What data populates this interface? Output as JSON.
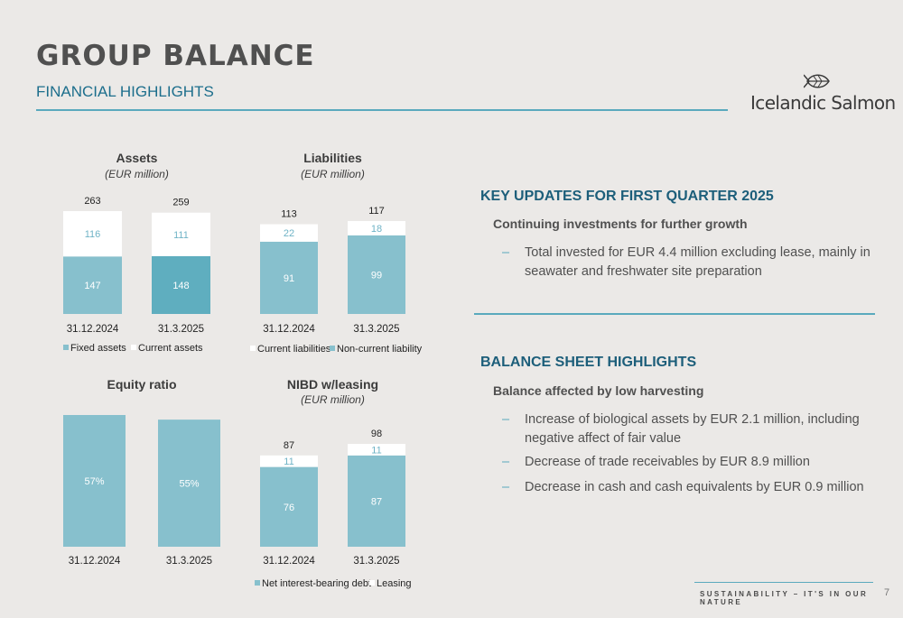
{
  "header": {
    "title": "GROUP BALANCE",
    "subtitle": "FINANCIAL HIGHLIGHTS",
    "brand": "Icelandic Salmon"
  },
  "colors": {
    "dark_teal": "#5faebf",
    "light_teal": "#87c0cd",
    "white_segment": "#ffffff",
    "heading_blue": "#1c5e7a",
    "rule": "#5aa9bd"
  },
  "chart_data": [
    {
      "id": "assets",
      "type": "bar",
      "stacked": true,
      "title": "Assets",
      "subtitle": "(EUR million)",
      "categories": [
        "31.12.2024",
        "31.3.2025"
      ],
      "series": [
        {
          "name": "Fixed assets",
          "values": [
            147,
            148
          ],
          "colors": [
            "#87c0cd",
            "#5faebf"
          ],
          "label_color": "#ffffff"
        },
        {
          "name": "Current assets",
          "values": [
            116,
            111
          ],
          "color": "#ffffff",
          "label_color": "#6fb3c6"
        }
      ],
      "totals": [
        263,
        259
      ],
      "ylim": [
        0,
        263
      ]
    },
    {
      "id": "liabilities",
      "type": "bar",
      "stacked": true,
      "title": "Liabilities",
      "subtitle": "(EUR million)",
      "categories": [
        "31.12.2024",
        "31.3.2025"
      ],
      "series": [
        {
          "name": "Non-current liability",
          "values": [
            91,
            99
          ],
          "color": "#87c0cd",
          "label_color": "#ffffff"
        },
        {
          "name": "Current liabilities",
          "values": [
            22,
            18
          ],
          "color": "#ffffff",
          "label_color": "#6fb3c6"
        }
      ],
      "legend_order": [
        "Current liabilities",
        "Non-current liability"
      ],
      "totals": [
        113,
        117
      ],
      "ylim": [
        0,
        117
      ]
    },
    {
      "id": "equity",
      "type": "bar",
      "stacked": false,
      "title": "Equity ratio",
      "subtitle": "",
      "categories": [
        "31.12.2024",
        "31.3.2025"
      ],
      "series": [
        {
          "name": "",
          "values": [
            57,
            55
          ],
          "labels": [
            "57%",
            "55%"
          ],
          "color": "#87c0cd",
          "label_color": "#ffffff"
        }
      ],
      "ylim": [
        0,
        57
      ]
    },
    {
      "id": "nibd",
      "type": "bar",
      "stacked": true,
      "title": "NIBD w/leasing",
      "subtitle": "(EUR million)",
      "categories": [
        "31.12.2024",
        "31.3.2025"
      ],
      "series": [
        {
          "name": "Net interest-bearing debt",
          "values": [
            76,
            87
          ],
          "color": "#87c0cd",
          "label_color": "#ffffff"
        },
        {
          "name": "Leasing",
          "values": [
            11,
            11
          ],
          "color": "#ffffff",
          "label_color": "#6fb3c6"
        }
      ],
      "totals": [
        87,
        98
      ],
      "ylim": [
        0,
        98
      ]
    }
  ],
  "key_updates": {
    "heading": "KEY UPDATES FOR FIRST QUARTER 2025",
    "subheading": "Continuing investments for further growth",
    "bullets": [
      {
        "dash": "–",
        "lines": [
          "Total invested for EUR 4.4 million excluding lease, mainly in",
          "seawater and freshwater site preparation"
        ]
      }
    ]
  },
  "balance_highlights": {
    "heading": "BALANCE SHEET HIGHLIGHTS",
    "subheading": "Balance affected by low harvesting",
    "bullets": [
      {
        "dash": "–",
        "lines": [
          "Increase of biological assets by EUR 2.1 million, including",
          "negative affect of fair value"
        ]
      },
      {
        "dash": "–",
        "lines": [
          "Decrease of trade receivables by EUR 8.9 million"
        ]
      },
      {
        "dash": "–",
        "lines": [
          "Decrease in cash and cash equivalents by EUR 0.9 million"
        ]
      }
    ]
  },
  "footer": {
    "text": "SUSTAINABILITY – IT'S IN OUR NATURE",
    "page": "7"
  }
}
